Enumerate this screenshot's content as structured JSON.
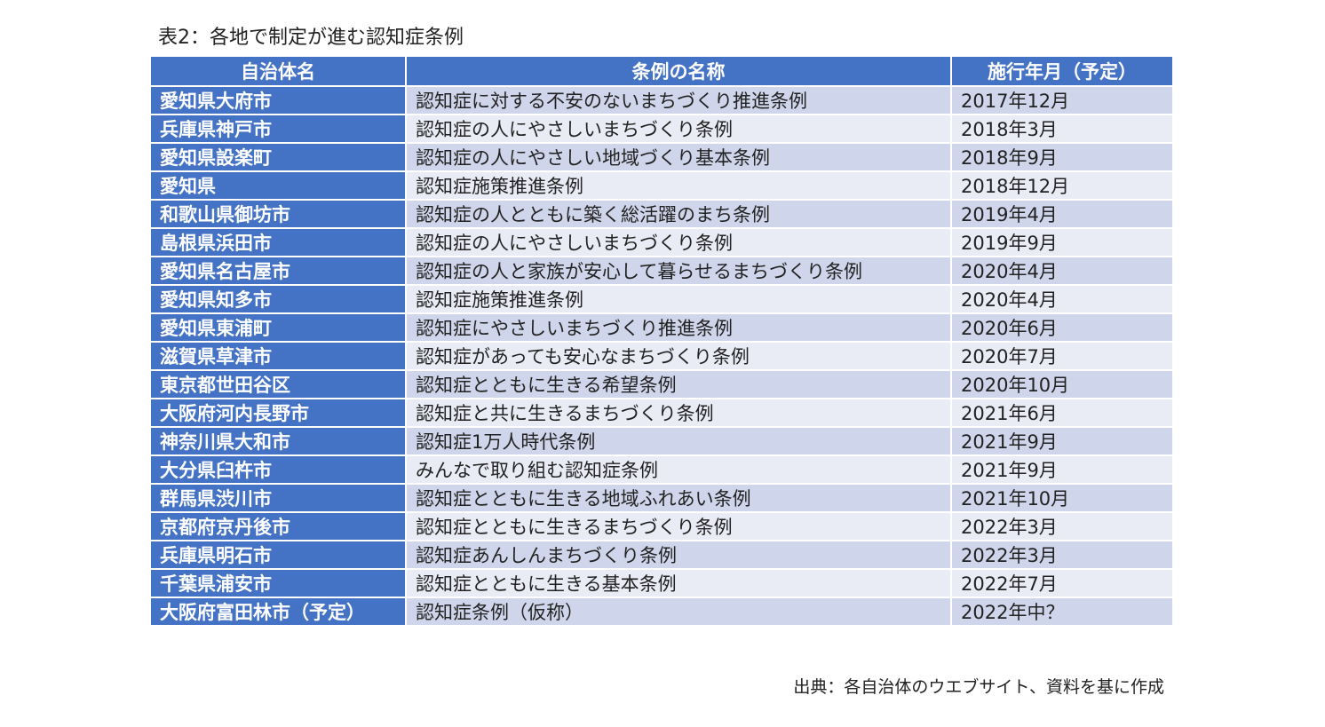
{
  "title": "表2：各地で制定が進む認知症条例",
  "table": {
    "headers": [
      "自治体名",
      "条例の名称",
      "施行年月（予定）"
    ],
    "rows": [
      [
        "愛知県大府市",
        "認知症に対する不安のないまちづくり推進条例",
        "2017年12月"
      ],
      [
        "兵庫県神戸市",
        "認知症の人にやさしいまちづくり条例",
        "2018年3月"
      ],
      [
        "愛知県設楽町",
        "認知症の人にやさしい地域づくり基本条例",
        "2018年9月"
      ],
      [
        "愛知県",
        "認知症施策推進条例",
        "2018年12月"
      ],
      [
        "和歌山県御坊市",
        "認知症の人とともに築く総活躍のまち条例",
        "2019年4月"
      ],
      [
        "島根県浜田市",
        "認知症の人にやさしいまちづくり条例",
        "2019年9月"
      ],
      [
        "愛知県名古屋市",
        "認知症の人と家族が安心して暮らせるまちづくり条例",
        "2020年4月"
      ],
      [
        "愛知県知多市",
        "認知症施策推進条例",
        "2020年4月"
      ],
      [
        "愛知県東浦町",
        "認知症にやさしいまちづくり推進条例",
        "2020年6月"
      ],
      [
        "滋賀県草津市",
        "認知症があっても安心なまちづくり条例",
        "2020年7月"
      ],
      [
        "東京都世田谷区",
        "認知症とともに生きる希望条例",
        "2020年10月"
      ],
      [
        "大阪府河内長野市",
        "認知症と共に生きるまちづくり条例",
        "2021年6月"
      ],
      [
        "神奈川県大和市",
        "認知症1万人時代条例",
        "2021年9月"
      ],
      [
        "大分県臼杵市",
        "みんなで取り組む認知症条例",
        "2021年9月"
      ],
      [
        "群馬県渋川市",
        "認知症とともに生きる地域ふれあい条例",
        "2021年10月"
      ],
      [
        "京都府京丹後市",
        "認知症とともに生きるまちづくり条例",
        "2022年3月"
      ],
      [
        "兵庫県明石市",
        "認知症あんしんまちづくり条例",
        "2022年3月"
      ],
      [
        "千葉県浦安市",
        "認知症とともに生きる基本条例",
        "2022年7月"
      ],
      [
        "大阪府富田林市（予定）",
        "認知症条例（仮称）",
        "2022年中？"
      ]
    ]
  },
  "source": "出典：各自治体のウエブサイト、資料を基に作成",
  "colors": {
    "header_bg": "#4472c4",
    "row_odd_bg": "#cfd5ea",
    "row_even_bg": "#e9ebf5",
    "header_text": "#ffffff"
  }
}
